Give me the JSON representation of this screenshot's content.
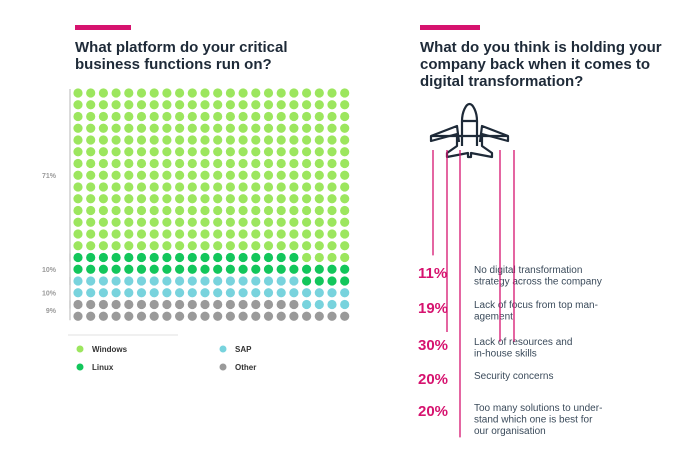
{
  "left": {
    "title": "What platform do your critical business functions run on?"
  },
  "right": {
    "title": "What do you think is holding your company back when it comes to digital transformation?"
  },
  "colors": {
    "accent": "#d6136f",
    "windows": "#9ce65e",
    "linux": "#12c65b",
    "sap": "#78d3dd",
    "other": "#9a9a9a"
  },
  "chart_data": [
    {
      "type": "waffle",
      "title": "What platform do your critical business functions run on?",
      "grid": {
        "rows": 20,
        "cols": 22
      },
      "series": [
        {
          "name": "Windows",
          "value": 71,
          "label": "71%"
        },
        {
          "name": "Linux",
          "value": 10,
          "label": "10%"
        },
        {
          "name": "SAP",
          "value": 10,
          "label": "10%"
        },
        {
          "name": "Other",
          "value": 9,
          "label": "9%"
        }
      ],
      "legend": [
        "Windows",
        "Linux",
        "SAP",
        "Other"
      ]
    },
    {
      "type": "bar",
      "title": "What do you think is holding your company back when it comes to digital transformation?",
      "icon": "airplane-icon",
      "series": [
        {
          "value": 11,
          "label": "11%",
          "text": [
            "No digital transformation",
            "strategy across the company"
          ]
        },
        {
          "value": 19,
          "label": "19%",
          "text": [
            "Lack of focus from top man-",
            "agement"
          ]
        },
        {
          "value": 30,
          "label": "30%",
          "text": [
            "Lack of resources and",
            "in-house skills"
          ]
        },
        {
          "value": 20,
          "label": "20%",
          "text": [
            "Security concerns"
          ]
        },
        {
          "value": 20,
          "label": "20%",
          "text": [
            "Too many solutions to under-",
            "stand which one is best for",
            "our organisation"
          ]
        }
      ]
    }
  ]
}
